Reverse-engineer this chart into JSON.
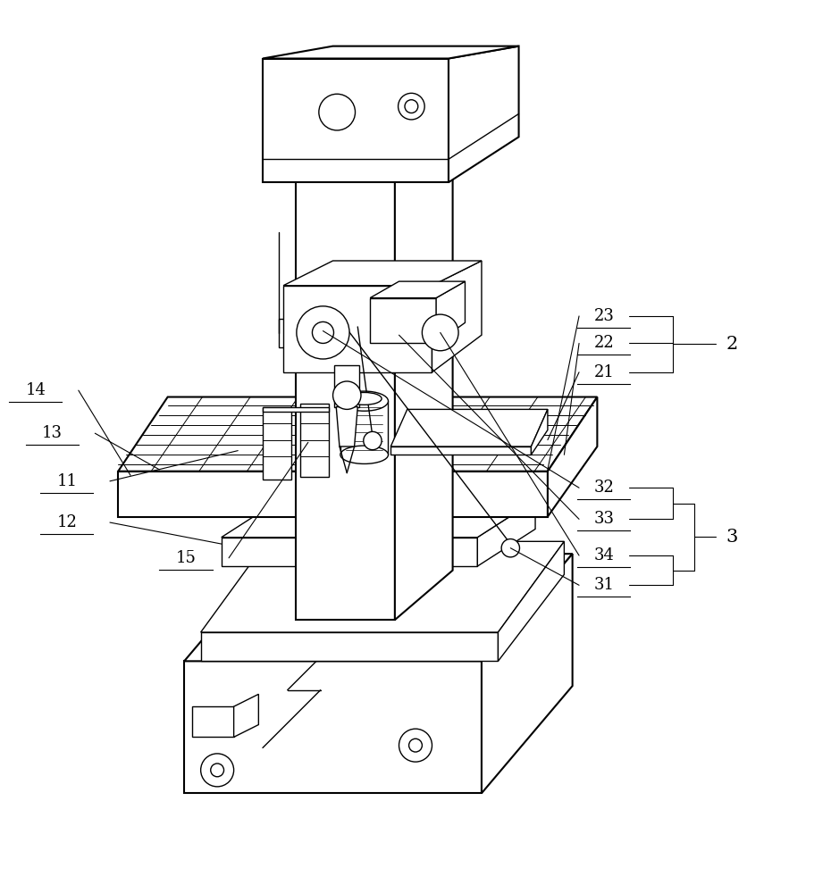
{
  "bg_color": "#ffffff",
  "line_color": "#000000",
  "figure_width": 9.3,
  "figure_height": 10.0,
  "dpi": 100
}
